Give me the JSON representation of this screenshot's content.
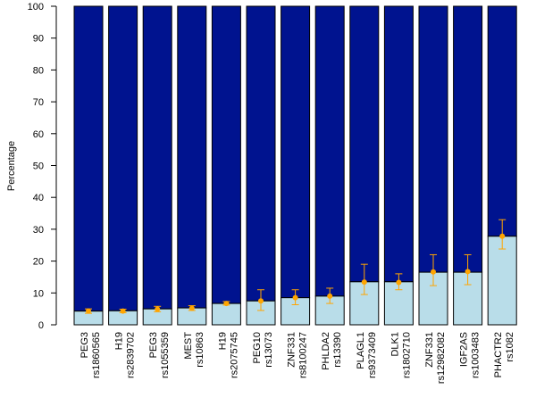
{
  "chart_data": {
    "type": "bar",
    "stacked": true,
    "ylabel": "Percentage",
    "ylim": [
      0,
      100
    ],
    "yticks": [
      0,
      10,
      20,
      30,
      40,
      50,
      60,
      70,
      80,
      90,
      100
    ],
    "grid": false,
    "categories": [
      {
        "gene": "PEG3",
        "snp": "rs1860565"
      },
      {
        "gene": "H19",
        "snp": "rs2839702"
      },
      {
        "gene": "PEG3",
        "snp": "rs1055359"
      },
      {
        "gene": "MEST",
        "snp": "rs10863"
      },
      {
        "gene": "H19",
        "snp": "rs2075745"
      },
      {
        "gene": "PEG10",
        "snp": "rs13073"
      },
      {
        "gene": "ZNF331",
        "snp": "rs8100247"
      },
      {
        "gene": "PHLDA2",
        "snp": "rs13390"
      },
      {
        "gene": "PLAGL1",
        "snp": "rs9373409"
      },
      {
        "gene": "DLK1",
        "snp": "rs1802710"
      },
      {
        "gene": "ZNF331",
        "snp": "rs12982082"
      },
      {
        "gene": "IGF2AS",
        "snp": "rs1003483"
      },
      {
        "gene": "PHACTR2",
        "snp": "rs1082"
      }
    ],
    "series": [
      {
        "values": [
          4.3,
          4.4,
          5.0,
          5.3,
          6.7,
          7.5,
          8.5,
          9.0,
          13.5,
          13.5,
          16.5,
          16.5,
          27.8
        ]
      },
      {
        "values": [
          95.7,
          95.6,
          95.0,
          94.7,
          93.3,
          92.5,
          91.5,
          91.0,
          86.5,
          86.5,
          83.5,
          83.5,
          72.2
        ]
      }
    ],
    "points": {
      "mean": [
        4.3,
        4.3,
        4.9,
        5.2,
        6.7,
        7.5,
        8.5,
        9.0,
        13.4,
        13.3,
        16.6,
        16.7,
        27.8
      ],
      "err_low": [
        3.6,
        3.8,
        4.1,
        4.5,
        6.2,
        4.5,
        6.3,
        6.7,
        9.5,
        11.0,
        12.3,
        12.6,
        23.8
      ],
      "err_high": [
        5.0,
        4.9,
        5.8,
        6.0,
        7.3,
        11.0,
        11.0,
        11.5,
        19.0,
        16.0,
        22.0,
        22.0,
        33.0
      ]
    },
    "colors": {
      "lower": "#b9dde9",
      "upper": "#00138f",
      "point": "#ffa500",
      "errorbar": "#ffa500",
      "border": "#000000"
    }
  }
}
